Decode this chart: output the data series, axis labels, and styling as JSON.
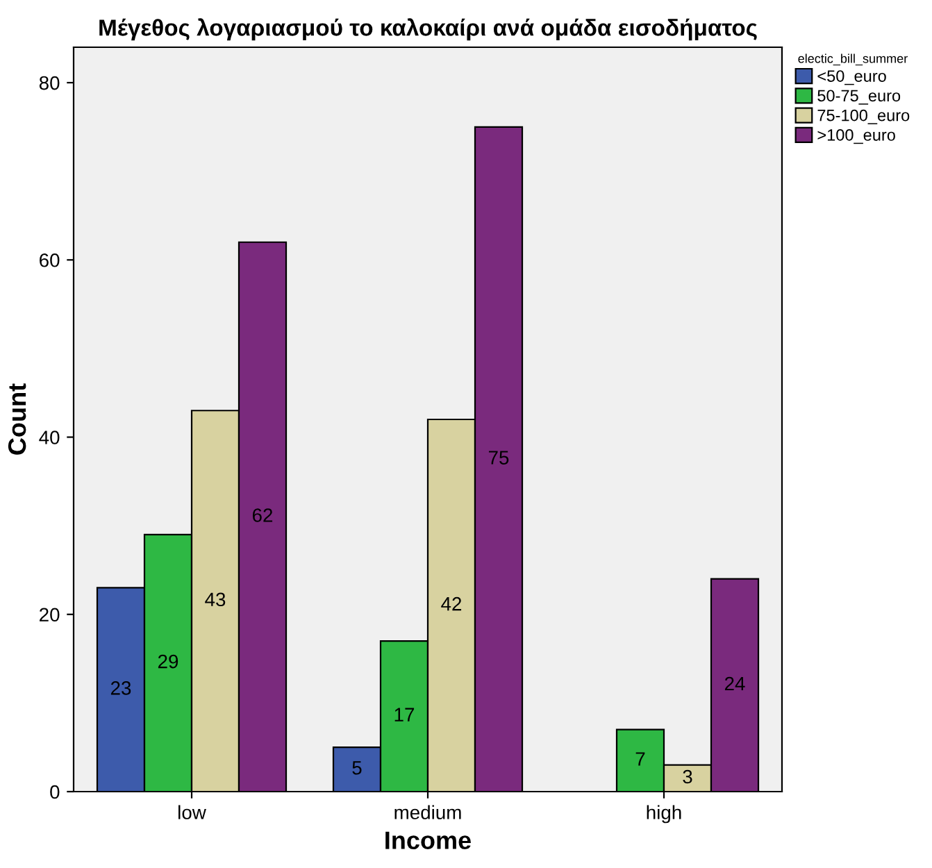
{
  "chart_data": {
    "type": "bar",
    "title": "Μέγεθος λογαριασμού το καλοκαίρι ανά ομάδα εισοδήματος",
    "xlabel": "Income",
    "ylabel": "Count",
    "legend_title": "electic_bill_summer",
    "categories": [
      "low",
      "medium",
      "high"
    ],
    "series": [
      {
        "name": "<50_euro",
        "color": "#3d5bab",
        "values": [
          23,
          5,
          null
        ]
      },
      {
        "name": "50-75_euro",
        "color": "#2eb844",
        "values": [
          29,
          17,
          7
        ]
      },
      {
        "name": "75-100_euro",
        "color": "#d8d2a0",
        "values": [
          43,
          42,
          3
        ]
      },
      {
        "name": ">100_euro",
        "color": "#7a2a7d",
        "values": [
          62,
          75,
          24
        ]
      }
    ],
    "ylim": [
      0,
      84
    ],
    "yticks": [
      0,
      20,
      40,
      60,
      80
    ],
    "data_labels": true,
    "grid": false,
    "legend": "top right"
  }
}
